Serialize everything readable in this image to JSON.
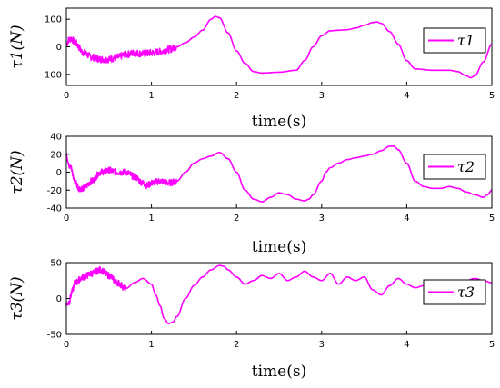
{
  "chart_data": [
    {
      "type": "line",
      "xlabel": "time(s)",
      "ylabel": "τ1(N)",
      "xlim": [
        0,
        5
      ],
      "ylim": [
        -140,
        140
      ],
      "xticks": [
        0,
        1,
        2,
        3,
        4,
        5
      ],
      "yticks": [
        100,
        0,
        -100
      ],
      "grid": false,
      "legend_position": "top-right",
      "series": [
        {
          "name": "τ1",
          "color": "#ff00ff",
          "noisy_until": 1.3,
          "x": [
            0,
            0.03,
            0.06,
            0.1,
            0.2,
            0.3,
            0.4,
            0.5,
            0.6,
            0.7,
            0.8,
            0.9,
            1.0,
            1.1,
            1.2,
            1.3,
            1.4,
            1.5,
            1.6,
            1.7,
            1.75,
            1.8,
            1.9,
            2.0,
            2.1,
            2.2,
            2.3,
            2.5,
            2.7,
            2.8,
            2.9,
            3.0,
            3.1,
            3.2,
            3.3,
            3.4,
            3.5,
            3.6,
            3.65,
            3.7,
            3.8,
            3.9,
            4.0,
            4.1,
            4.3,
            4.5,
            4.6,
            4.7,
            4.75,
            4.8,
            4.9,
            5.0
          ],
          "y": [
            10,
            25,
            30,
            15,
            -20,
            -38,
            -45,
            -45,
            -38,
            -28,
            -22,
            -25,
            -22,
            -18,
            -10,
            0,
            15,
            35,
            60,
            100,
            110,
            105,
            50,
            -15,
            -60,
            -90,
            -95,
            -92,
            -85,
            -50,
            0,
            40,
            58,
            60,
            62,
            68,
            78,
            88,
            90,
            85,
            55,
            10,
            -50,
            -80,
            -85,
            -85,
            -90,
            -105,
            -112,
            -105,
            -55,
            10
          ]
        }
      ]
    },
    {
      "type": "line",
      "xlabel": "time(s)",
      "ylabel": "τ2(N)",
      "xlim": [
        0,
        5
      ],
      "ylim": [
        -40,
        40
      ],
      "xticks": [
        0,
        1,
        2,
        3,
        4,
        5
      ],
      "yticks": [
        40,
        20,
        0,
        -20,
        -40
      ],
      "grid": false,
      "legend_position": "top-right",
      "series": [
        {
          "name": "τ2",
          "color": "#ff00ff",
          "noisy_until": 1.3,
          "x": [
            0,
            0.05,
            0.1,
            0.15,
            0.2,
            0.3,
            0.4,
            0.5,
            0.6,
            0.7,
            0.8,
            0.9,
            0.95,
            1.0,
            1.1,
            1.2,
            1.3,
            1.4,
            1.5,
            1.6,
            1.7,
            1.8,
            1.9,
            2.0,
            2.1,
            2.2,
            2.3,
            2.4,
            2.5,
            2.6,
            2.7,
            2.8,
            2.85,
            2.9,
            3.0,
            3.05,
            3.1,
            3.2,
            3.3,
            3.4,
            3.5,
            3.6,
            3.7,
            3.8,
            3.85,
            3.9,
            4.0,
            4.1,
            4.2,
            4.3,
            4.4,
            4.5,
            4.6,
            4.7,
            4.8,
            4.9,
            4.95,
            5.0
          ],
          "y": [
            18,
            5,
            -10,
            -18,
            -18,
            -10,
            0,
            2,
            0,
            0,
            -5,
            -12,
            -15,
            -12,
            -10,
            -12,
            -10,
            0,
            10,
            15,
            18,
            22,
            15,
            0,
            -20,
            -30,
            -33,
            -28,
            -23,
            -25,
            -30,
            -32,
            -30,
            -25,
            -10,
            0,
            5,
            10,
            14,
            16,
            18,
            20,
            24,
            29,
            29,
            25,
            10,
            -10,
            -16,
            -18,
            -18,
            -16,
            -18,
            -22,
            -25,
            -28,
            -25,
            -20
          ]
        }
      ]
    },
    {
      "type": "line",
      "xlabel": "time(s)",
      "ylabel": "τ3(N)",
      "xlim": [
        0,
        5
      ],
      "ylim": [
        -50,
        50
      ],
      "xticks": [
        0,
        1,
        2,
        3,
        4,
        5
      ],
      "yticks": [
        50,
        0,
        -50
      ],
      "grid": false,
      "legend_position": "top-right",
      "series": [
        {
          "name": "τ3",
          "color": "#ff00ff",
          "noisy_until": 0.7,
          "x": [
            0,
            0.03,
            0.07,
            0.1,
            0.2,
            0.3,
            0.4,
            0.5,
            0.6,
            0.7,
            0.8,
            0.9,
            1.0,
            1.05,
            1.1,
            1.15,
            1.2,
            1.25,
            1.3,
            1.4,
            1.5,
            1.6,
            1.7,
            1.8,
            1.85,
            1.9,
            2.0,
            2.1,
            2.2,
            2.3,
            2.4,
            2.5,
            2.6,
            2.7,
            2.8,
            2.9,
            3.0,
            3.1,
            3.2,
            3.3,
            3.4,
            3.5,
            3.6,
            3.7,
            3.8,
            3.9,
            4.0,
            4.1,
            4.2,
            4.3,
            4.4,
            4.5,
            4.6,
            4.7,
            4.8,
            4.9,
            5.0
          ],
          "y": [
            -8,
            -5,
            10,
            22,
            30,
            35,
            40,
            32,
            22,
            14,
            22,
            28,
            20,
            5,
            -10,
            -28,
            -35,
            -33,
            -25,
            0,
            18,
            30,
            40,
            46,
            45,
            40,
            30,
            20,
            25,
            32,
            28,
            35,
            25,
            30,
            38,
            30,
            25,
            35,
            20,
            30,
            25,
            30,
            12,
            5,
            18,
            28,
            20,
            15,
            18,
            15,
            20,
            18,
            22,
            25,
            28,
            25,
            22
          ]
        }
      ]
    }
  ]
}
